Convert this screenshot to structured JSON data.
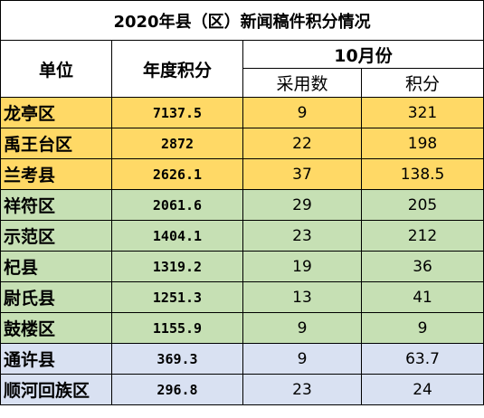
{
  "title": "2020年县（区）新闻稿件积分情况",
  "headers": {
    "unit": "单位",
    "annual_score": "年度积分",
    "month": "10月份",
    "adopted": "采用数",
    "score": "积分"
  },
  "colors": {
    "yellow": "#ffd966",
    "green": "#c6e0b4",
    "blue": "#d9e1f2"
  },
  "rows": [
    {
      "name": "龙亭区",
      "annual": "7137.5",
      "adopted": "9",
      "score": "321",
      "group": "yellow"
    },
    {
      "name": "禹王台区",
      "annual": "2872",
      "adopted": "22",
      "score": "198",
      "group": "yellow"
    },
    {
      "name": "兰考县",
      "annual": "2626.1",
      "adopted": "37",
      "score": "138.5",
      "group": "yellow"
    },
    {
      "name": "祥符区",
      "annual": "2061.6",
      "adopted": "29",
      "score": "205",
      "group": "green"
    },
    {
      "name": "示范区",
      "annual": "1404.1",
      "adopted": "23",
      "score": "212",
      "group": "green"
    },
    {
      "name": "杞县",
      "annual": "1319.2",
      "adopted": "19",
      "score": "36",
      "group": "green"
    },
    {
      "name": "尉氏县",
      "annual": "1251.3",
      "adopted": "13",
      "score": "41",
      "group": "green"
    },
    {
      "name": "鼓楼区",
      "annual": "1155.9",
      "adopted": "9",
      "score": "9",
      "group": "green"
    },
    {
      "name": "通许县",
      "annual": "369.3",
      "adopted": "9",
      "score": "63.7",
      "group": "blue"
    },
    {
      "name": "顺河回族区",
      "annual": "296.8",
      "adopted": "23",
      "score": "24",
      "group": "blue"
    }
  ]
}
